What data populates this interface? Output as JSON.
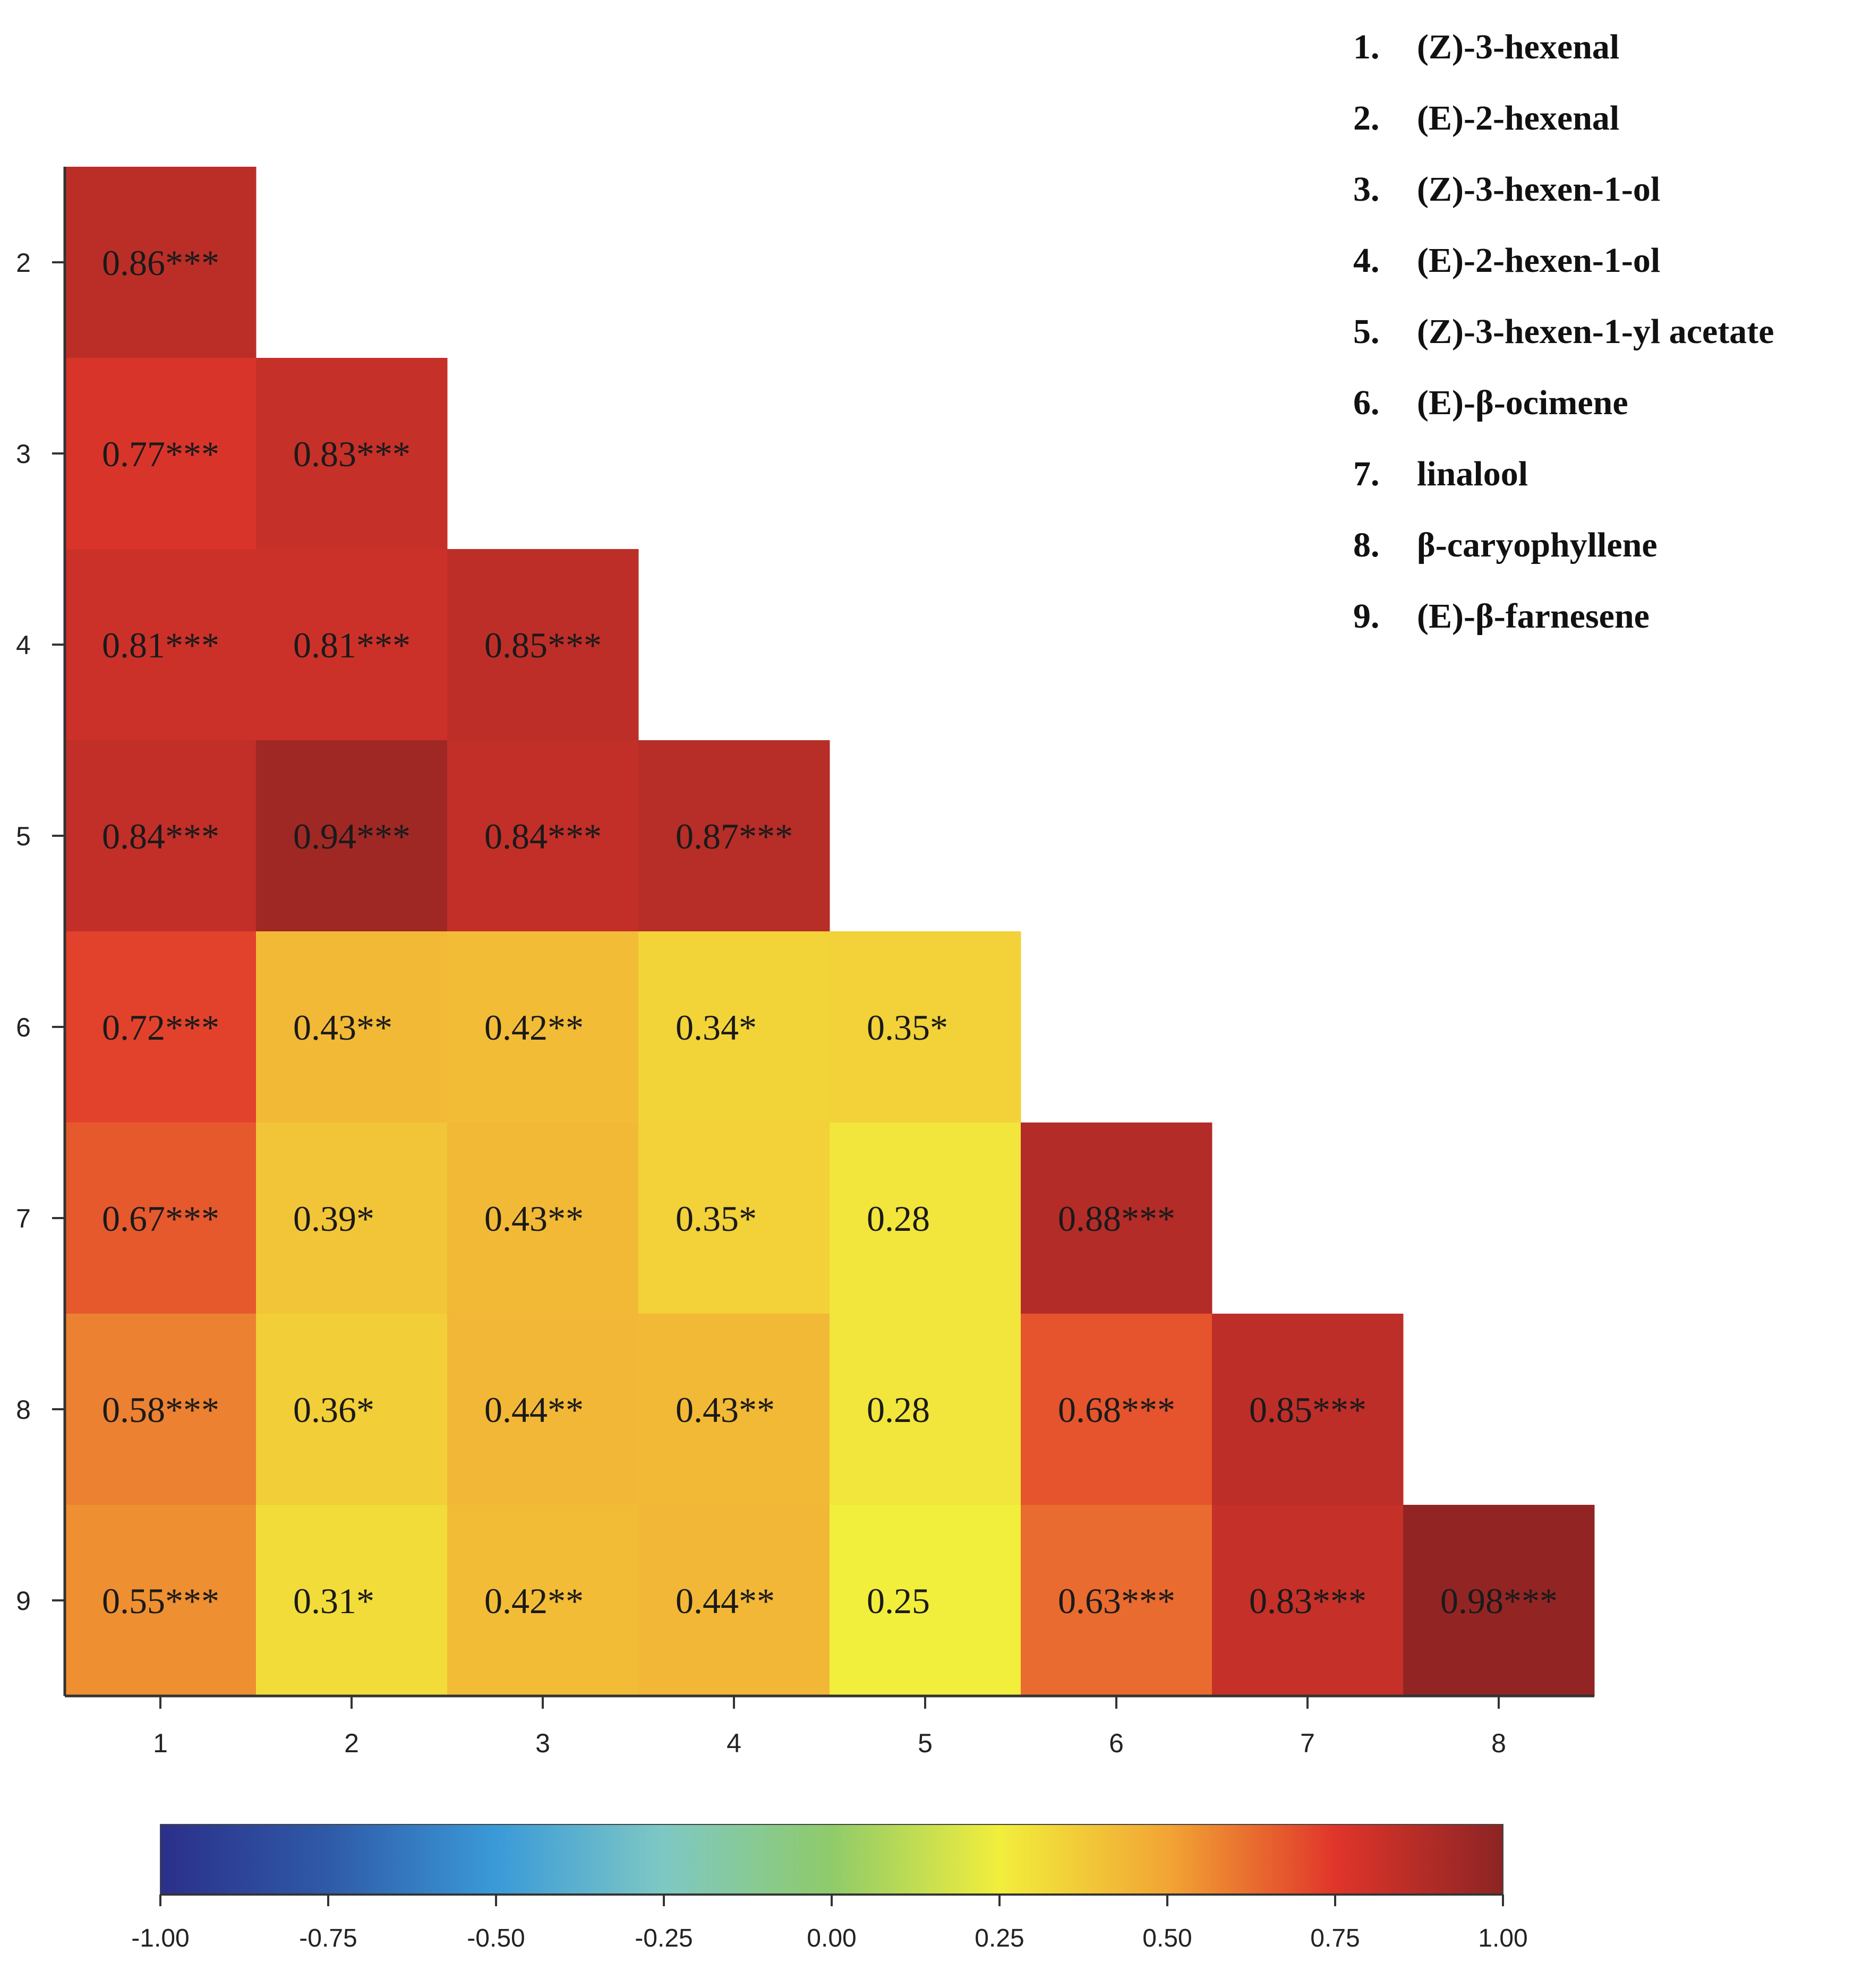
{
  "chart_data": {
    "type": "heatmap",
    "title": "",
    "x_categories": [
      "1",
      "2",
      "3",
      "4",
      "5",
      "6",
      "7",
      "8"
    ],
    "y_categories": [
      "2",
      "3",
      "4",
      "5",
      "6",
      "7",
      "8",
      "9"
    ],
    "cells": [
      {
        "row": "2",
        "col": "1",
        "value": 0.86,
        "label": "0.86***"
      },
      {
        "row": "3",
        "col": "1",
        "value": 0.77,
        "label": "0.77***"
      },
      {
        "row": "3",
        "col": "2",
        "value": 0.83,
        "label": "0.83***"
      },
      {
        "row": "4",
        "col": "1",
        "value": 0.81,
        "label": "0.81***"
      },
      {
        "row": "4",
        "col": "2",
        "value": 0.81,
        "label": "0.81***"
      },
      {
        "row": "4",
        "col": "3",
        "value": 0.85,
        "label": "0.85***"
      },
      {
        "row": "5",
        "col": "1",
        "value": 0.84,
        "label": "0.84***"
      },
      {
        "row": "5",
        "col": "2",
        "value": 0.94,
        "label": "0.94***"
      },
      {
        "row": "5",
        "col": "3",
        "value": 0.84,
        "label": "0.84***"
      },
      {
        "row": "5",
        "col": "4",
        "value": 0.87,
        "label": "0.87***"
      },
      {
        "row": "6",
        "col": "1",
        "value": 0.72,
        "label": "0.72***"
      },
      {
        "row": "6",
        "col": "2",
        "value": 0.43,
        "label": "0.43**"
      },
      {
        "row": "6",
        "col": "3",
        "value": 0.42,
        "label": "0.42**"
      },
      {
        "row": "6",
        "col": "4",
        "value": 0.34,
        "label": "0.34*"
      },
      {
        "row": "6",
        "col": "5",
        "value": 0.35,
        "label": "0.35*"
      },
      {
        "row": "7",
        "col": "1",
        "value": 0.67,
        "label": "0.67***"
      },
      {
        "row": "7",
        "col": "2",
        "value": 0.39,
        "label": "0.39*"
      },
      {
        "row": "7",
        "col": "3",
        "value": 0.43,
        "label": "0.43**"
      },
      {
        "row": "7",
        "col": "4",
        "value": 0.35,
        "label": "0.35*"
      },
      {
        "row": "7",
        "col": "5",
        "value": 0.28,
        "label": "0.28"
      },
      {
        "row": "7",
        "col": "6",
        "value": 0.88,
        "label": "0.88***"
      },
      {
        "row": "8",
        "col": "1",
        "value": 0.58,
        "label": "0.58***"
      },
      {
        "row": "8",
        "col": "2",
        "value": 0.36,
        "label": "0.36*"
      },
      {
        "row": "8",
        "col": "3",
        "value": 0.44,
        "label": "0.44**"
      },
      {
        "row": "8",
        "col": "4",
        "value": 0.43,
        "label": "0.43**"
      },
      {
        "row": "8",
        "col": "5",
        "value": 0.28,
        "label": "0.28"
      },
      {
        "row": "8",
        "col": "6",
        "value": 0.68,
        "label": "0.68***"
      },
      {
        "row": "8",
        "col": "7",
        "value": 0.85,
        "label": "0.85***"
      },
      {
        "row": "9",
        "col": "1",
        "value": 0.55,
        "label": "0.55***"
      },
      {
        "row": "9",
        "col": "2",
        "value": 0.31,
        "label": "0.31*"
      },
      {
        "row": "9",
        "col": "3",
        "value": 0.42,
        "label": "0.42**"
      },
      {
        "row": "9",
        "col": "4",
        "value": 0.44,
        "label": "0.44**"
      },
      {
        "row": "9",
        "col": "5",
        "value": 0.25,
        "label": "0.25"
      },
      {
        "row": "9",
        "col": "6",
        "value": 0.63,
        "label": "0.63***"
      },
      {
        "row": "9",
        "col": "7",
        "value": 0.83,
        "label": "0.83***"
      },
      {
        "row": "9",
        "col": "8",
        "value": 0.98,
        "label": "0.98***"
      }
    ],
    "colorbar": {
      "range": [
        -1.0,
        1.0
      ],
      "ticks": [
        "-1.00",
        "-0.75",
        "-0.50",
        "-0.25",
        "0.00",
        "0.25",
        "0.50",
        "0.75",
        "1.00"
      ],
      "colors": [
        "#2b2f8a",
        "#2f5aa8",
        "#3a9ad8",
        "#7ec8c4",
        "#8fcb6a",
        "#f2ee3c",
        "#f2a534",
        "#e0352a",
        "#8b2424"
      ]
    },
    "legend": [
      {
        "num": "1.",
        "name": "(Z)-3-hexenal"
      },
      {
        "num": "2.",
        "name": "(E)-2-hexenal"
      },
      {
        "num": "3.",
        "name": "(Z)-3-hexen-1-ol"
      },
      {
        "num": "4.",
        "name": "(E)-2-hexen-1-ol"
      },
      {
        "num": "5.",
        "name": "(Z)-3-hexen-1-yl acetate"
      },
      {
        "num": "6.",
        "name": "(E)-β-ocimene"
      },
      {
        "num": "7.",
        "name": "linalool"
      },
      {
        "num": "8.",
        "name": "β-caryophyllene"
      },
      {
        "num": "9.",
        "name": "(E)-β-farnesene"
      }
    ]
  }
}
